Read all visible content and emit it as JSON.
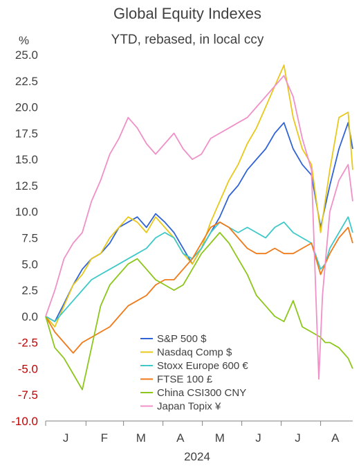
{
  "chart_data": {
    "type": "line",
    "title": "Global Equity Indexes",
    "subtitle": "YTD, rebased, in local ccy",
    "ylabel": "%",
    "xlabel": "2024",
    "ylim": [
      -10,
      25
    ],
    "yticks": [
      "25.0",
      "22.5",
      "20.0",
      "17.5",
      "15.0",
      "12.5",
      "10.0",
      "7.5",
      "5.0",
      "2.5",
      "0.0",
      "-2.5",
      "-5.0",
      "-7.5",
      "-10.0"
    ],
    "x_range": [
      0,
      33.5
    ],
    "x_unit": "weeks since start of 2024",
    "month_labels": [
      "J",
      "F",
      "M",
      "A",
      "M",
      "J",
      "J",
      "A"
    ],
    "month_label_positions": [
      2.2,
      6.4,
      10.4,
      14.7,
      19.0,
      23.2,
      27.5,
      31.6
    ],
    "legend_position": "bottom-center",
    "series": [
      {
        "name": "S&P 500 $",
        "color": "#2f63d6",
        "x": [
          0,
          1,
          2,
          3,
          4,
          5,
          6,
          7,
          8,
          9,
          10,
          11,
          12,
          13,
          14,
          15,
          16,
          17,
          18,
          19,
          20,
          21,
          22,
          23,
          24,
          25,
          26,
          27,
          28,
          29,
          30,
          30.5,
          31,
          32,
          33,
          33.5
        ],
        "y": [
          0.0,
          -0.5,
          1.2,
          3.0,
          4.5,
          5.5,
          6.0,
          7.0,
          8.5,
          9.0,
          9.5,
          8.5,
          9.8,
          9.0,
          8.0,
          6.5,
          5.0,
          6.5,
          8.0,
          9.5,
          11.5,
          12.5,
          14.0,
          15.0,
          16.0,
          17.5,
          18.5,
          16.0,
          14.5,
          13.5,
          8.5,
          10.5,
          12.5,
          16.0,
          18.5,
          16.0
        ]
      },
      {
        "name": "Nasdaq Comp $",
        "color": "#e8c81a",
        "x": [
          0,
          1,
          2,
          3,
          4,
          5,
          6,
          7,
          8,
          9,
          10,
          11,
          12,
          13,
          14,
          15,
          16,
          17,
          18,
          19,
          20,
          21,
          22,
          23,
          24,
          25,
          26,
          27,
          28,
          29,
          30,
          30.5,
          31,
          32,
          33,
          33.5
        ],
        "y": [
          0.0,
          -1.0,
          1.0,
          3.0,
          4.0,
          5.5,
          6.0,
          7.5,
          8.5,
          9.5,
          9.0,
          8.0,
          9.5,
          8.5,
          7.5,
          6.0,
          5.0,
          6.5,
          9.0,
          11.0,
          13.0,
          14.5,
          16.5,
          18.0,
          20.0,
          22.0,
          24.0,
          19.0,
          16.0,
          14.5,
          8.0,
          11.0,
          14.0,
          19.0,
          19.5,
          14.0
        ]
      },
      {
        "name": "Stoxx Europe 600 €",
        "color": "#3ec8c8",
        "x": [
          0,
          1,
          2,
          3,
          4,
          5,
          6,
          7,
          8,
          9,
          10,
          11,
          12,
          13,
          14,
          15,
          16,
          17,
          18,
          19,
          20,
          21,
          22,
          23,
          24,
          25,
          26,
          27,
          28,
          29,
          30,
          30.5,
          31,
          32,
          33,
          33.5
        ],
        "y": [
          0.0,
          -0.5,
          0.5,
          1.5,
          2.5,
          3.5,
          4.0,
          4.5,
          5.0,
          5.5,
          6.0,
          6.5,
          7.5,
          8.0,
          7.5,
          6.0,
          5.5,
          6.5,
          8.0,
          9.0,
          8.5,
          8.0,
          8.5,
          8.0,
          7.5,
          8.5,
          9.0,
          8.0,
          7.5,
          7.0,
          4.5,
          5.0,
          6.5,
          8.0,
          9.5,
          8.0
        ]
      },
      {
        "name": "FTSE 100 £",
        "color": "#f07a1a",
        "x": [
          0,
          1,
          2,
          3,
          4,
          5,
          6,
          7,
          8,
          9,
          10,
          11,
          12,
          13,
          14,
          15,
          16,
          17,
          18,
          19,
          20,
          21,
          22,
          23,
          24,
          25,
          26,
          27,
          28,
          29,
          30,
          30.5,
          31,
          32,
          33,
          33.5
        ],
        "y": [
          0.0,
          -1.5,
          -2.5,
          -3.5,
          -2.5,
          -2.0,
          -1.5,
          -1.0,
          0.0,
          1.0,
          1.5,
          2.0,
          3.0,
          3.5,
          3.5,
          4.5,
          5.5,
          7.0,
          8.5,
          9.0,
          8.5,
          7.5,
          6.5,
          6.0,
          6.0,
          6.5,
          6.0,
          6.0,
          6.5,
          7.0,
          4.0,
          5.0,
          6.0,
          7.5,
          8.5,
          7.0
        ]
      },
      {
        "name": "China CSI300 CNY",
        "color": "#8cc61a",
        "x": [
          0,
          1,
          2,
          3,
          4,
          5,
          6,
          7,
          8,
          9,
          10,
          11,
          12,
          13,
          14,
          15,
          16,
          17,
          18,
          19,
          20,
          21,
          22,
          23,
          24,
          25,
          26,
          27,
          28,
          29,
          30,
          30.5,
          31,
          32,
          33,
          33.5
        ],
        "y": [
          0.0,
          -3.0,
          -4.0,
          -5.5,
          -7.0,
          -3.0,
          1.0,
          3.0,
          4.0,
          5.0,
          5.5,
          4.5,
          3.5,
          3.0,
          2.5,
          3.0,
          4.5,
          6.0,
          7.0,
          8.0,
          7.0,
          5.5,
          4.0,
          2.0,
          1.0,
          0.0,
          -0.5,
          1.5,
          -1.0,
          -1.5,
          -2.0,
          -2.5,
          -2.5,
          -3.0,
          -4.0,
          -5.0
        ]
      },
      {
        "name": "Japan Topix ¥",
        "color": "#f090c8",
        "x": [
          0,
          1,
          2,
          3,
          4,
          5,
          6,
          7,
          8,
          9,
          10,
          11,
          12,
          13,
          14,
          15,
          16,
          17,
          18,
          19,
          20,
          21,
          22,
          23,
          24,
          25,
          26,
          27,
          28,
          29,
          29.8,
          30.2,
          31,
          32,
          33,
          33.5
        ],
        "y": [
          0.0,
          2.5,
          5.5,
          7.0,
          8.0,
          11.0,
          13.0,
          15.5,
          17.0,
          19.0,
          18.0,
          16.5,
          15.5,
          16.5,
          17.5,
          16.0,
          15.0,
          15.5,
          17.0,
          17.5,
          18.0,
          18.5,
          19.0,
          20.0,
          21.0,
          22.0,
          23.0,
          21.0,
          17.0,
          14.0,
          -6.0,
          2.0,
          10.0,
          13.0,
          14.5,
          11.0
        ]
      }
    ]
  }
}
